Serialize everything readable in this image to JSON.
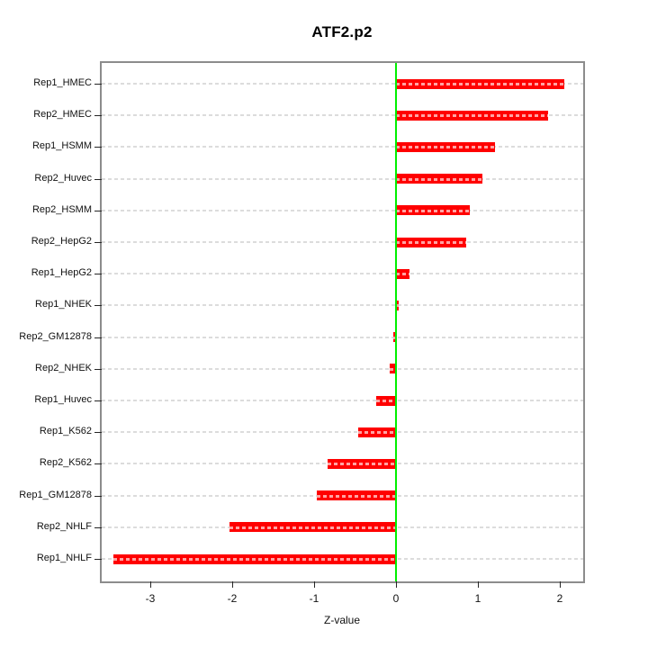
{
  "chart_data": {
    "type": "bar",
    "orientation": "horizontal",
    "title": "ATF2.p2",
    "xlabel": "Z-value",
    "ylabel": "",
    "categories": [
      "Rep1_HMEC",
      "Rep2_HMEC",
      "Rep1_HSMM",
      "Rep2_Huvec",
      "Rep2_HSMM",
      "Rep2_HepG2",
      "Rep1_HepG2",
      "Rep1_NHEK",
      "Rep2_GM12878",
      "Rep2_NHEK",
      "Rep1_Huvec",
      "Rep1_K562",
      "Rep2_K562",
      "Rep1_GM12878",
      "Rep2_NHLF",
      "Rep1_NHLF"
    ],
    "values": [
      2.05,
      1.86,
      1.21,
      1.05,
      0.9,
      0.86,
      0.17,
      0.03,
      -0.03,
      -0.08,
      -0.24,
      -0.46,
      -0.84,
      -0.97,
      -2.03,
      -3.45
    ],
    "x_ticks": [
      -3,
      -2,
      -1,
      0,
      1,
      2
    ],
    "xlim": [
      -3.57,
      2.27
    ],
    "zero_reference_line": 0,
    "grid": "dashed horizontal line per category",
    "legend": "none",
    "colors": {
      "bar": "#ff0000",
      "bar_dash": "#ffa3a3",
      "grid": "#dcdcdc",
      "zero_line": "#00f000",
      "box_border": "#8c8c8c",
      "text": "#000000",
      "background": "#ffffff"
    }
  }
}
